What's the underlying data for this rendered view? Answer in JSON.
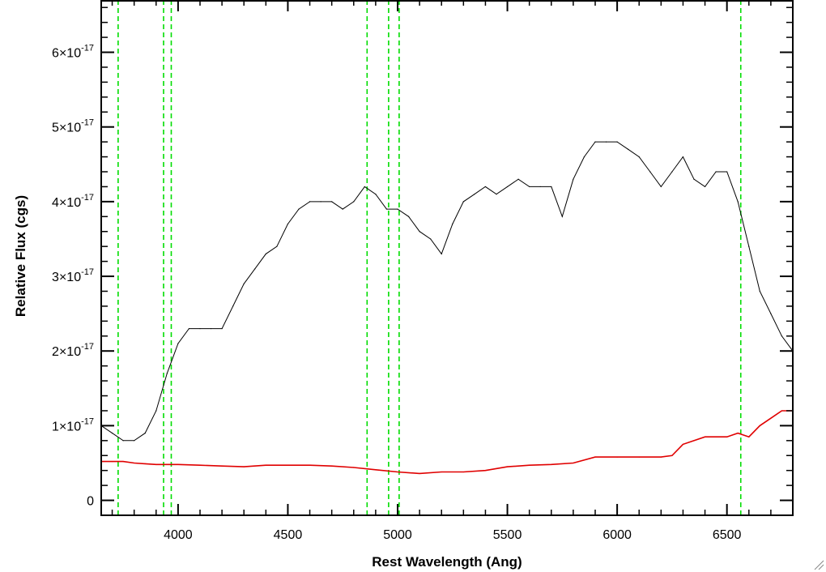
{
  "chart_data": {
    "type": "line",
    "title": "",
    "xlabel": "Rest Wavelength (Ang)",
    "ylabel": "Relative Flux (cgs)",
    "xlim": [
      3650,
      6800
    ],
    "ylim": [
      -2e-18,
      6.7e-17
    ],
    "x_ticks": [
      4000,
      4500,
      5000,
      5500,
      6000,
      6500
    ],
    "y_ticks": [
      {
        "value": 0,
        "mantissa": "0",
        "exponent": ""
      },
      {
        "value": 1e-17,
        "mantissa": "1×10",
        "exponent": "-17"
      },
      {
        "value": 2e-17,
        "mantissa": "2×10",
        "exponent": "-17"
      },
      {
        "value": 3e-17,
        "mantissa": "3×10",
        "exponent": "-17"
      },
      {
        "value": 4e-17,
        "mantissa": "4×10",
        "exponent": "-17"
      },
      {
        "value": 5e-17,
        "mantissa": "5×10",
        "exponent": "-17"
      },
      {
        "value": 6e-17,
        "mantissa": "6×10",
        "exponent": "-17"
      }
    ],
    "grid": false,
    "reference_lines": [
      3727,
      3934,
      3969,
      4861,
      4959,
      5007,
      6563
    ],
    "colors": {
      "spectrum": "#000000",
      "error": "#e00000",
      "reference": "#00dd00"
    },
    "series": [
      {
        "role": "spectrum",
        "x": [
          3650,
          3700,
          3750,
          3800,
          3850,
          3900,
          3950,
          4000,
          4050,
          4100,
          4150,
          4200,
          4250,
          4300,
          4350,
          4400,
          4450,
          4500,
          4550,
          4600,
          4650,
          4700,
          4750,
          4800,
          4850,
          4900,
          4950,
          5000,
          5050,
          5100,
          5150,
          5200,
          5250,
          5300,
          5350,
          5400,
          5450,
          5500,
          5550,
          5600,
          5650,
          5700,
          5750,
          5800,
          5850,
          5900,
          5950,
          6000,
          6050,
          6100,
          6150,
          6200,
          6250,
          6300,
          6350,
          6400,
          6450,
          6500,
          6550,
          6600,
          6650,
          6700,
          6750,
          6800
        ],
        "y": [
          1e-17,
          9e-18,
          8e-18,
          8e-18,
          9e-18,
          1.2e-17,
          1.7e-17,
          2.1e-17,
          2.3e-17,
          2.3e-17,
          2.3e-17,
          2.3e-17,
          2.6e-17,
          2.9e-17,
          3.1e-17,
          3.3e-17,
          3.4e-17,
          3.7e-17,
          3.9e-17,
          4e-17,
          4e-17,
          4e-17,
          3.9e-17,
          4e-17,
          4.2e-17,
          4.1e-17,
          3.9e-17,
          3.9e-17,
          3.8e-17,
          3.6e-17,
          3.5e-17,
          3.3e-17,
          3.7e-17,
          4e-17,
          4.1e-17,
          4.2e-17,
          4.1e-17,
          4.2e-17,
          4.3e-17,
          4.2e-17,
          4.2e-17,
          4.2e-17,
          3.8e-17,
          4.3e-17,
          4.6e-17,
          4.8e-17,
          4.8e-17,
          4.8e-17,
          4.7e-17,
          4.6e-17,
          4.4e-17,
          4.2e-17,
          4.4e-17,
          4.6e-17,
          4.3e-17,
          4.2e-17,
          4.4e-17,
          4.4e-17,
          4e-17,
          3.4e-17,
          2.8e-17,
          2.5e-17,
          2.2e-17,
          2e-17
        ]
      },
      {
        "role": "error",
        "x": [
          3650,
          3700,
          3750,
          3800,
          3850,
          3900,
          3950,
          4000,
          4100,
          4200,
          4300,
          4400,
          4500,
          4600,
          4700,
          4800,
          4900,
          5000,
          5100,
          5200,
          5300,
          5400,
          5500,
          5600,
          5700,
          5800,
          5900,
          6000,
          6100,
          6200,
          6250,
          6300,
          6400,
          6500,
          6550,
          6600,
          6650,
          6700,
          6750,
          6800
        ],
        "y": [
          5.2e-18,
          5.2e-18,
          5.2e-18,
          5e-18,
          4.9e-18,
          4.8e-18,
          4.8e-18,
          4.8e-18,
          4.7e-18,
          4.6e-18,
          4.5e-18,
          4.7e-18,
          4.7e-18,
          4.7e-18,
          4.6e-18,
          4.4e-18,
          4.1e-18,
          3.8e-18,
          3.6e-18,
          3.8e-18,
          3.8e-18,
          4e-18,
          4.5e-18,
          4.7e-18,
          4.8e-18,
          5e-18,
          5.8e-18,
          5.8e-18,
          5.8e-18,
          5.8e-18,
          6e-18,
          7.5e-18,
          8.5e-18,
          8.5e-18,
          9e-18,
          8.5e-18,
          1e-17,
          1.1e-17,
          1.2e-17,
          1.2e-17
        ]
      }
    ]
  }
}
